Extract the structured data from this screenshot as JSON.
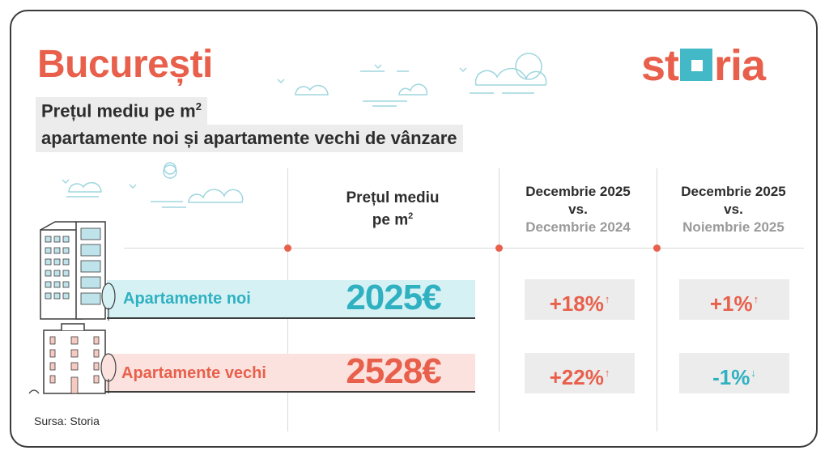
{
  "header": {
    "title": "București",
    "subtitle_line1": "Prețul mediu pe m",
    "subtitle_line1_sup": "2",
    "subtitle_line2": "apartamente noi și apartamente vechi de vânzare"
  },
  "brand": {
    "logo_part1": "st",
    "logo_part2": "ria",
    "accent_color": "#e8604c",
    "teal_color": "#43b9c7"
  },
  "columns": {
    "price": {
      "line1": "Prețul mediu",
      "line2": "pe m",
      "line2_sup": "2"
    },
    "compare_yoy": {
      "line1": "Decembrie 2025",
      "line2": "vs.",
      "line3": "Decembrie 2024"
    },
    "compare_mom": {
      "line1": "Decembrie 2025",
      "line2": "vs.",
      "line3": "Noiembrie 2025"
    }
  },
  "rows": [
    {
      "label": "Apartamente noi",
      "price": "2025€",
      "yoy": "+18%",
      "yoy_arrow": "↑",
      "mom": "+1%",
      "mom_arrow": "↑"
    },
    {
      "label": "Apartamente vechi",
      "price": "2528€",
      "yoy": "+22%",
      "yoy_arrow": "↑",
      "mom": "-1%",
      "mom_arrow": "↓"
    }
  ],
  "footer": {
    "source": "Sursa: Storia"
  }
}
